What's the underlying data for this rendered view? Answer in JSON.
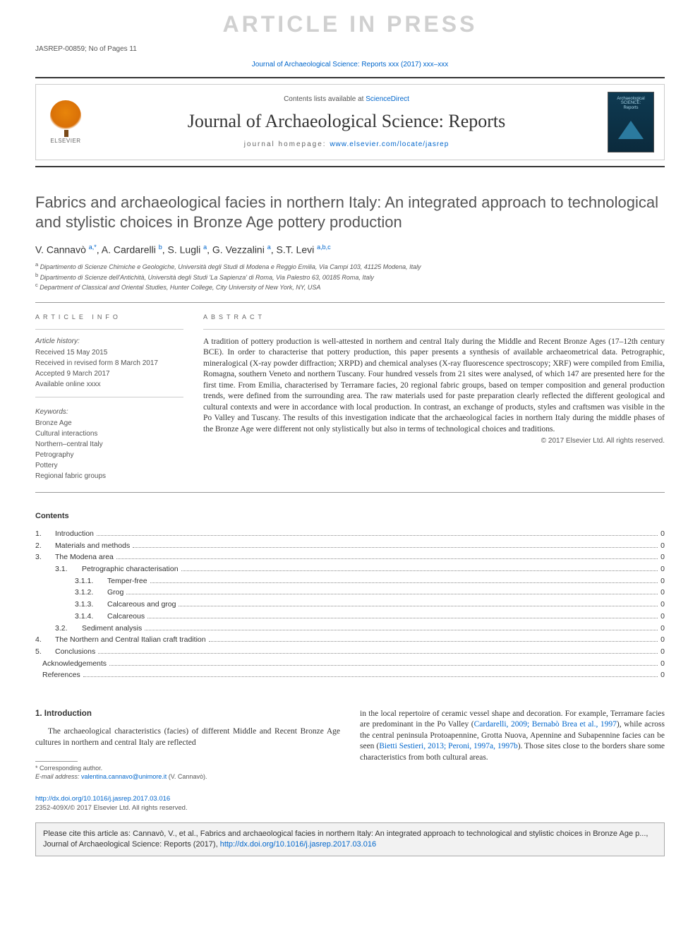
{
  "watermark": "ARTICLE IN PRESS",
  "articleId": "JASREP-00859; No of Pages 11",
  "topJournalLink": {
    "text": "Journal of Archaeological Science: Reports xxx (2017) xxx–xxx",
    "href": "#"
  },
  "journalBlock": {
    "elsevier": "ELSEVIER",
    "contentsList": {
      "prefix": "Contents lists available at ",
      "linkText": "ScienceDirect",
      "href": "#"
    },
    "journalName": "Journal of Archaeological Science: Reports",
    "homepage": {
      "label": "journal homepage: ",
      "linkText": "www.elsevier.com/locate/jasrep",
      "href": "#"
    },
    "coverTop": "Archaeological",
    "coverMid": "SCIENCE:",
    "coverBot": "Reports"
  },
  "title": "Fabrics and archaeological facies in northern Italy: An integrated approach to technological and stylistic choices in Bronze Age pottery production",
  "authors": {
    "a1": {
      "name": "V. Cannavò",
      "aff": "a,*"
    },
    "a2": {
      "name": "A. Cardarelli",
      "aff": "b"
    },
    "a3": {
      "name": "S. Lugli",
      "aff": "a"
    },
    "a4": {
      "name": "G. Vezzalini",
      "aff": "a"
    },
    "a5": {
      "name": "S.T. Levi",
      "aff": "a,b,c"
    }
  },
  "affiliations": {
    "a": "Dipartimento di Scienze Chimiche e Geologiche, Università degli Studi di Modena e Reggio Emilia, Via Campi 103, 41125 Modena, Italy",
    "b": "Dipartimento di Scienze dell'Antichità, Università degli Studi 'La Sapienza' di Roma, Via Palestro 63, 00185 Roma, Italy",
    "c": "Department of Classical and Oriental Studies, Hunter College, City University of New York, NY, USA"
  },
  "articleInfo": {
    "head": "ARTICLE INFO",
    "historyHead": "Article history:",
    "received": "Received 15 May 2015",
    "revised": "Received in revised form 8 March 2017",
    "accepted": "Accepted 9 March 2017",
    "online": "Available online xxxx",
    "kwHead": "Keywords:",
    "kw": [
      "Bronze Age",
      "Cultural interactions",
      "Northern–central Italy",
      "Petrography",
      "Pottery",
      "Regional fabric groups"
    ]
  },
  "abstract": {
    "head": "ABSTRACT",
    "text": "A tradition of pottery production is well-attested in northern and central Italy during the Middle and Recent Bronze Ages (17–12th century BCE). In order to characterise that pottery production, this paper presents a synthesis of available archaeometrical data. Petrographic, mineralogical (X-ray powder diffraction; XRPD) and chemical analyses (X-ray fluorescence spectroscopy; XRF) were compiled from Emilia, Romagna, southern Veneto and northern Tuscany. Four hundred vessels from 21 sites were analysed, of which 147 are presented here for the first time. From Emilia, characterised by Terramare facies, 20 regional fabric groups, based on temper composition and general production trends, were defined from the surrounding area. The raw materials used for paste preparation clearly reflected the different geological and cultural contexts and were in accordance with local production. In contrast, an exchange of products, styles and craftsmen was visible in the Po Valley and Tuscany. The results of this investigation indicate that the archaeological facies in northern Italy during the middle phases of the Bronze Age were different not only stylistically but also in terms of technological choices and traditions.",
    "copyright": "© 2017 Elsevier Ltd. All rights reserved."
  },
  "contents": {
    "head": "Contents",
    "items": [
      {
        "level": 1,
        "num": "1.",
        "label": "Introduction",
        "page": "0"
      },
      {
        "level": 1,
        "num": "2.",
        "label": "Materials and methods",
        "page": "0"
      },
      {
        "level": 1,
        "num": "3.",
        "label": "The Modena area",
        "page": "0"
      },
      {
        "level": 2,
        "num": "3.1.",
        "label": "Petrographic characterisation",
        "page": "0"
      },
      {
        "level": 3,
        "num": "3.1.1.",
        "label": "Temper-free",
        "page": "0"
      },
      {
        "level": 3,
        "num": "3.1.2.",
        "label": "Grog",
        "page": "0"
      },
      {
        "level": 3,
        "num": "3.1.3.",
        "label": "Calcareous and grog",
        "page": "0"
      },
      {
        "level": 3,
        "num": "3.1.4.",
        "label": "Calcareous",
        "page": "0"
      },
      {
        "level": 2,
        "num": "3.2.",
        "label": "Sediment analysis",
        "page": "0"
      },
      {
        "level": 1,
        "num": "4.",
        "label": "The Northern and Central Italian craft tradition",
        "page": "0"
      },
      {
        "level": 1,
        "num": "5.",
        "label": "Conclusions",
        "page": "0"
      },
      {
        "level": 0,
        "num": "",
        "label": "Acknowledgements",
        "page": "0"
      },
      {
        "level": 0,
        "num": "",
        "label": "References",
        "page": "0"
      }
    ]
  },
  "intro": {
    "head": "1. Introduction",
    "left": "The archaeological characteristics (facies) of different Middle and Recent Bronze Age cultures in northern and central Italy are reflected",
    "rightPre": "in the local repertoire of ceramic vessel shape and decoration. For example, Terramare facies are predominant in the Po Valley (",
    "rightLink1": "Cardarelli, 2009; Bernabò Brea et al., 1997",
    "rightMid": "), while across the central peninsula Protoapennine, Grotta Nuova, Apennine and Subapennine facies can be seen (",
    "rightLink2": "Bietti Sestieri, 2013; Peroni, 1997a, 1997b",
    "rightPost": "). Those sites close to the borders share some characteristics from both cultural areas."
  },
  "footnote": {
    "star": "Corresponding author.",
    "emailLabel": "E-mail address: ",
    "email": "valentina.cannavo@unimore.it",
    "emailSuffix": " (V. Cannavò)."
  },
  "doi": {
    "href": "#",
    "text": "http://dx.doi.org/10.1016/j.jasrep.2017.03.016"
  },
  "issn": "2352-409X/© 2017 Elsevier Ltd. All rights reserved.",
  "citeBox": {
    "pre": "Please cite this article as: Cannavò, V., et al., Fabrics and archaeological facies in northern Italy: An integrated approach to technological and stylistic choices in Bronze Age p..., Journal of Archaeological Science: Reports (2017), ",
    "link": "http://dx.doi.org/10.1016/j.jasrep.2017.03.016"
  },
  "colors": {
    "link": "#0066cc",
    "watermark": "#d0d0d0",
    "text": "#333333",
    "muted": "#555555"
  }
}
